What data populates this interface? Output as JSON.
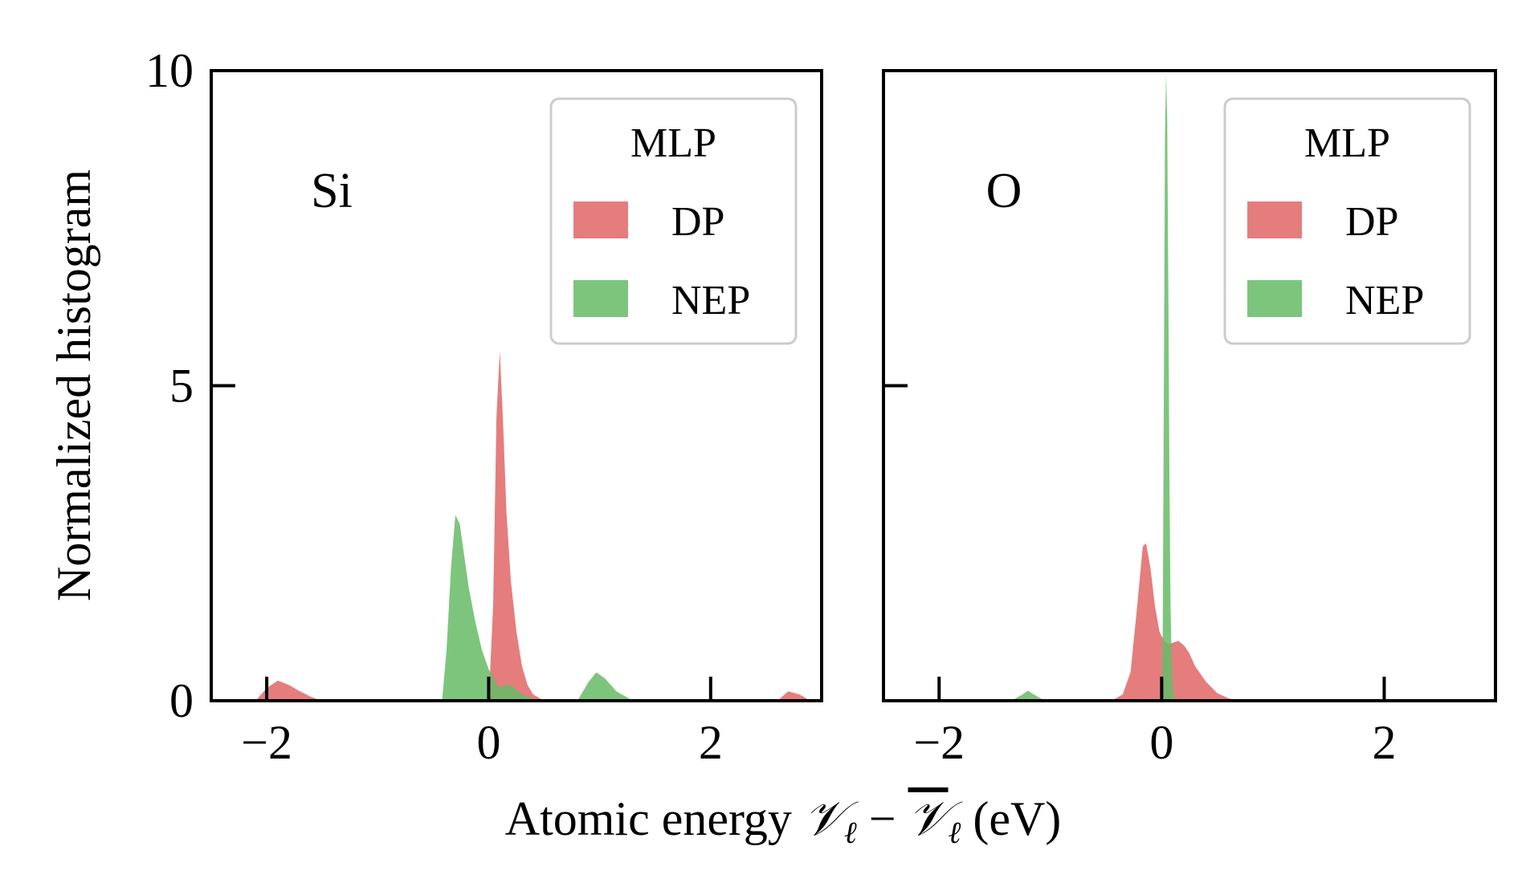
{
  "chart_data": {
    "type": "area",
    "ylabel": "Normalized histogram",
    "xlabel": {
      "prefix": "Atomic energy ",
      "var": "𝒱",
      "sub": "ℓ",
      "minus": " − ",
      "suffix": " (eV)"
    },
    "colors": {
      "DP": "#e06666",
      "NEP": "#66bb66",
      "axes": "#000000",
      "legend_border": "#cccccc"
    },
    "xlim": [
      -2.5,
      3.0
    ],
    "ylim": [
      0,
      10
    ],
    "xticks": [
      -2,
      0,
      2
    ],
    "xtick_labels": [
      "−2",
      "0",
      "2"
    ],
    "yticks": [
      0,
      5,
      10
    ],
    "ytick_labels": [
      "0",
      "5",
      "10"
    ],
    "legend_title": "MLP",
    "legend_placement": "top-right",
    "panels": [
      {
        "label": "Si",
        "series": [
          {
            "name": "DP",
            "x": [
              -2.1,
              -2.0,
              -1.9,
              -1.8,
              -1.7,
              -1.6,
              -1.5,
              0.0,
              0.04,
              0.07,
              0.1,
              0.13,
              0.16,
              0.2,
              0.25,
              0.3,
              0.35,
              0.4,
              0.5,
              2.6,
              2.7,
              2.8,
              2.9
            ],
            "y": [
              0.0,
              0.2,
              0.32,
              0.25,
              0.15,
              0.06,
              0.0,
              0.0,
              1.5,
              4.5,
              5.55,
              4.4,
              3.0,
              1.9,
              1.1,
              0.55,
              0.25,
              0.1,
              0.0,
              0.0,
              0.15,
              0.1,
              0.0
            ]
          },
          {
            "name": "NEP",
            "x": [
              -0.42,
              -0.38,
              -0.34,
              -0.3,
              -0.26,
              -0.22,
              -0.18,
              -0.12,
              -0.06,
              0.0,
              0.06,
              0.1,
              0.15,
              0.22,
              0.3,
              0.4,
              0.5,
              0.8,
              0.9,
              0.97,
              1.05,
              1.15,
              1.3
            ],
            "y": [
              0.0,
              0.8,
              2.1,
              2.95,
              2.8,
              2.3,
              1.8,
              1.25,
              0.8,
              0.5,
              0.3,
              0.2,
              0.26,
              0.22,
              0.1,
              0.03,
              0.0,
              0.0,
              0.3,
              0.45,
              0.35,
              0.15,
              0.0
            ]
          }
        ]
      },
      {
        "label": "O",
        "series": [
          {
            "name": "DP",
            "x": [
              -0.45,
              -0.35,
              -0.28,
              -0.22,
              -0.17,
              -0.14,
              -0.1,
              -0.06,
              -0.02,
              0.02,
              0.06,
              0.1,
              0.15,
              0.2,
              0.25,
              0.3,
              0.4,
              0.5,
              0.6,
              0.7
            ],
            "y": [
              0.0,
              0.1,
              0.45,
              1.5,
              2.45,
              2.5,
              2.1,
              1.5,
              1.1,
              0.95,
              0.9,
              0.92,
              0.95,
              0.88,
              0.75,
              0.55,
              0.3,
              0.12,
              0.04,
              0.0
            ]
          },
          {
            "name": "NEP",
            "x": [
              -1.35,
              -1.25,
              -1.2,
              -1.15,
              -1.05,
              0.0,
              0.01,
              0.02,
              0.03,
              0.04,
              0.05,
              0.06,
              0.07,
              0.08,
              0.09,
              0.1,
              0.12
            ],
            "y": [
              0.0,
              0.1,
              0.16,
              0.1,
              0.0,
              0.0,
              1.2,
              5.0,
              9.0,
              9.95,
              9.2,
              6.5,
              3.5,
              1.5,
              0.6,
              0.2,
              0.0
            ]
          }
        ]
      }
    ]
  }
}
